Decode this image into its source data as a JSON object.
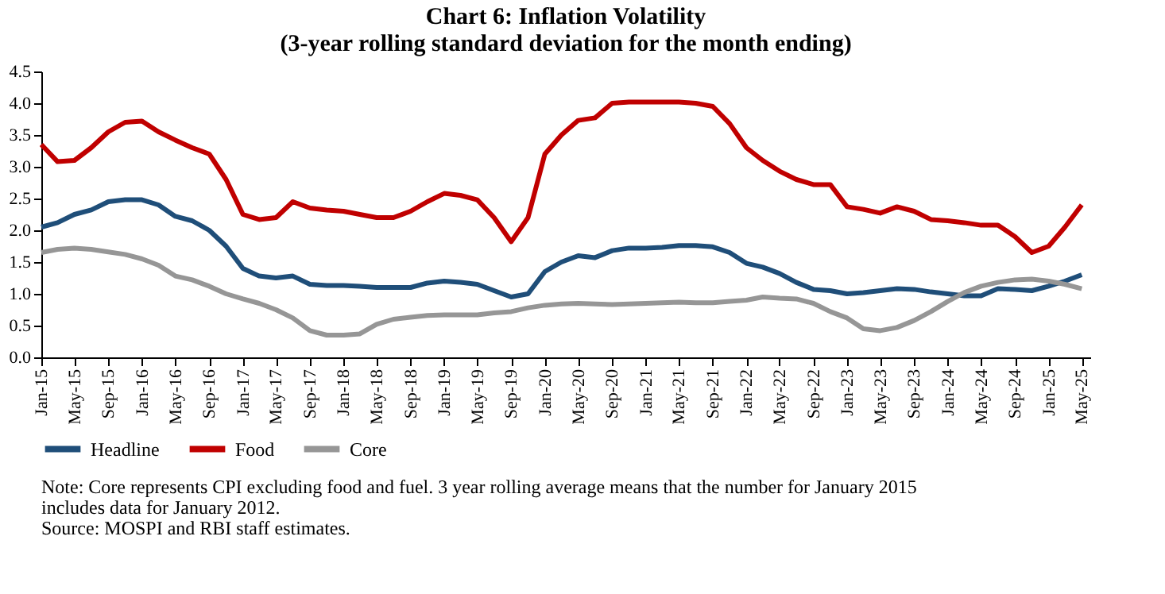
{
  "chart_data": {
    "type": "line",
    "title": [
      "Chart 6: Inflation Volatility",
      "(3-year rolling standard deviation for the month ending)"
    ],
    "x": [
      "2015-01",
      "2015-03",
      "2015-05",
      "2015-07",
      "2015-09",
      "2015-11",
      "2016-01",
      "2016-03",
      "2016-05",
      "2016-07",
      "2016-09",
      "2016-11",
      "2017-01",
      "2017-03",
      "2017-05",
      "2017-07",
      "2017-09",
      "2017-11",
      "2018-01",
      "2018-03",
      "2018-05",
      "2018-07",
      "2018-09",
      "2018-11",
      "2019-01",
      "2019-03",
      "2019-05",
      "2019-07",
      "2019-09",
      "2019-11",
      "2020-01",
      "2020-03",
      "2020-05",
      "2020-07",
      "2020-09",
      "2020-11",
      "2021-01",
      "2021-03",
      "2021-05",
      "2021-07",
      "2021-09",
      "2021-11",
      "2022-01",
      "2022-03",
      "2022-05",
      "2022-07",
      "2022-09",
      "2022-11",
      "2023-01",
      "2023-03",
      "2023-05",
      "2023-07",
      "2023-09",
      "2023-11",
      "2024-01",
      "2024-03",
      "2024-05",
      "2024-07",
      "2024-09",
      "2024-11",
      "2025-01",
      "2025-03",
      "2025-05"
    ],
    "series": [
      {
        "name": "Headline",
        "color": "#1f4e79",
        "values": [
          2.05,
          2.12,
          2.25,
          2.32,
          2.45,
          2.48,
          2.48,
          2.4,
          2.22,
          2.15,
          2.0,
          1.75,
          1.4,
          1.28,
          1.25,
          1.28,
          1.15,
          1.13,
          1.13,
          1.12,
          1.1,
          1.1,
          1.1,
          1.17,
          1.2,
          1.18,
          1.15,
          1.05,
          0.95,
          1.0,
          1.35,
          1.5,
          1.6,
          1.57,
          1.68,
          1.72,
          1.72,
          1.73,
          1.76,
          1.76,
          1.74,
          1.65,
          1.48,
          1.42,
          1.32,
          1.18,
          1.07,
          1.05,
          1.0,
          1.02,
          1.05,
          1.08,
          1.07,
          1.03,
          1.0,
          0.97,
          0.97,
          1.08,
          1.07,
          1.05,
          1.12,
          1.2,
          1.3
        ]
      },
      {
        "name": "Food",
        "color": "#c00000",
        "values": [
          3.35,
          3.08,
          3.1,
          3.3,
          3.55,
          3.7,
          3.72,
          3.55,
          3.42,
          3.3,
          3.2,
          2.8,
          2.25,
          2.17,
          2.2,
          2.45,
          2.35,
          2.32,
          2.3,
          2.25,
          2.2,
          2.2,
          2.3,
          2.45,
          2.58,
          2.55,
          2.48,
          2.2,
          1.82,
          2.2,
          3.2,
          3.5,
          3.73,
          3.77,
          4.0,
          4.02,
          4.02,
          4.02,
          4.02,
          4.0,
          3.95,
          3.68,
          3.3,
          3.1,
          2.93,
          2.8,
          2.72,
          2.72,
          2.37,
          2.33,
          2.27,
          2.37,
          2.3,
          2.17,
          2.15,
          2.12,
          2.08,
          2.08,
          1.9,
          1.65,
          1.75,
          2.05,
          2.4
        ]
      },
      {
        "name": "Core",
        "color": "#969696",
        "values": [
          1.65,
          1.7,
          1.72,
          1.7,
          1.66,
          1.62,
          1.55,
          1.45,
          1.28,
          1.22,
          1.12,
          1.0,
          0.92,
          0.85,
          0.75,
          0.62,
          0.42,
          0.35,
          0.35,
          0.37,
          0.52,
          0.6,
          0.63,
          0.66,
          0.67,
          0.67,
          0.67,
          0.7,
          0.72,
          0.78,
          0.82,
          0.84,
          0.85,
          0.84,
          0.83,
          0.84,
          0.85,
          0.86,
          0.87,
          0.86,
          0.86,
          0.88,
          0.9,
          0.95,
          0.93,
          0.92,
          0.85,
          0.72,
          0.62,
          0.45,
          0.42,
          0.47,
          0.58,
          0.72,
          0.88,
          1.02,
          1.12,
          1.18,
          1.22,
          1.23,
          1.2,
          1.15,
          1.08
        ]
      }
    ],
    "ylim": [
      0,
      4.5
    ],
    "yticks": [
      {
        "value": 0,
        "label": "0.0"
      },
      {
        "value": 0.5,
        "label": "0.5"
      },
      {
        "value": 1,
        "label": "1.0"
      },
      {
        "value": 1.5,
        "label": "1.5"
      },
      {
        "value": 2,
        "label": "2.0"
      },
      {
        "value": 2.5,
        "label": "2.5"
      },
      {
        "value": 3,
        "label": "3.0"
      },
      {
        "value": 3.5,
        "label": "3.5"
      },
      {
        "value": 4,
        "label": "4.0"
      },
      {
        "value": 4.5,
        "label": "4.5"
      }
    ],
    "xlim": [
      "2015-01",
      "2025-06"
    ],
    "xticks": [
      {
        "value": "2015-01",
        "label": "Jan-15"
      },
      {
        "value": "2015-05",
        "label": "May-15"
      },
      {
        "value": "2015-09",
        "label": "Sep-15"
      },
      {
        "value": "2016-01",
        "label": "Jan-16"
      },
      {
        "value": "2016-05",
        "label": "May-16"
      },
      {
        "value": "2016-09",
        "label": "Sep-16"
      },
      {
        "value": "2017-01",
        "label": "Jan-17"
      },
      {
        "value": "2017-05",
        "label": "May-17"
      },
      {
        "value": "2017-09",
        "label": "Sep-17"
      },
      {
        "value": "2018-01",
        "label": "Jan-18"
      },
      {
        "value": "2018-05",
        "label": "May-18"
      },
      {
        "value": "2018-09",
        "label": "Sep-18"
      },
      {
        "value": "2019-01",
        "label": "Jan-19"
      },
      {
        "value": "2019-05",
        "label": "May-19"
      },
      {
        "value": "2019-09",
        "label": "Sep-19"
      },
      {
        "value": "2020-01",
        "label": "Jan-20"
      },
      {
        "value": "2020-05",
        "label": "May-20"
      },
      {
        "value": "2020-09",
        "label": "Sep-20"
      },
      {
        "value": "2021-01",
        "label": "Jan-21"
      },
      {
        "value": "2021-05",
        "label": "May-21"
      },
      {
        "value": "2021-09",
        "label": "Sep-21"
      },
      {
        "value": "2022-01",
        "label": "Jan-22"
      },
      {
        "value": "2022-05",
        "label": "May-22"
      },
      {
        "value": "2022-09",
        "label": "Sep-22"
      },
      {
        "value": "2023-01",
        "label": "Jan-23"
      },
      {
        "value": "2023-05",
        "label": "May-23"
      },
      {
        "value": "2023-09",
        "label": "Sep-23"
      },
      {
        "value": "2024-01",
        "label": "Jan-24"
      },
      {
        "value": "2024-05",
        "label": "May-24"
      },
      {
        "value": "2024-09",
        "label": "Sep-24"
      },
      {
        "value": "2025-01",
        "label": "Jan-25"
      },
      {
        "value": "2025-05",
        "label": "May-25"
      }
    ],
    "grid": false,
    "legend": "bottom",
    "marker": "none",
    "line_style": "solid",
    "annotations": [
      "Note: Core represents CPI excluding food and fuel.  3 year rolling average  means that the number for January 2015 includes data for January 2012.",
      "Source: MOSPI and RBI staff estimates."
    ]
  }
}
